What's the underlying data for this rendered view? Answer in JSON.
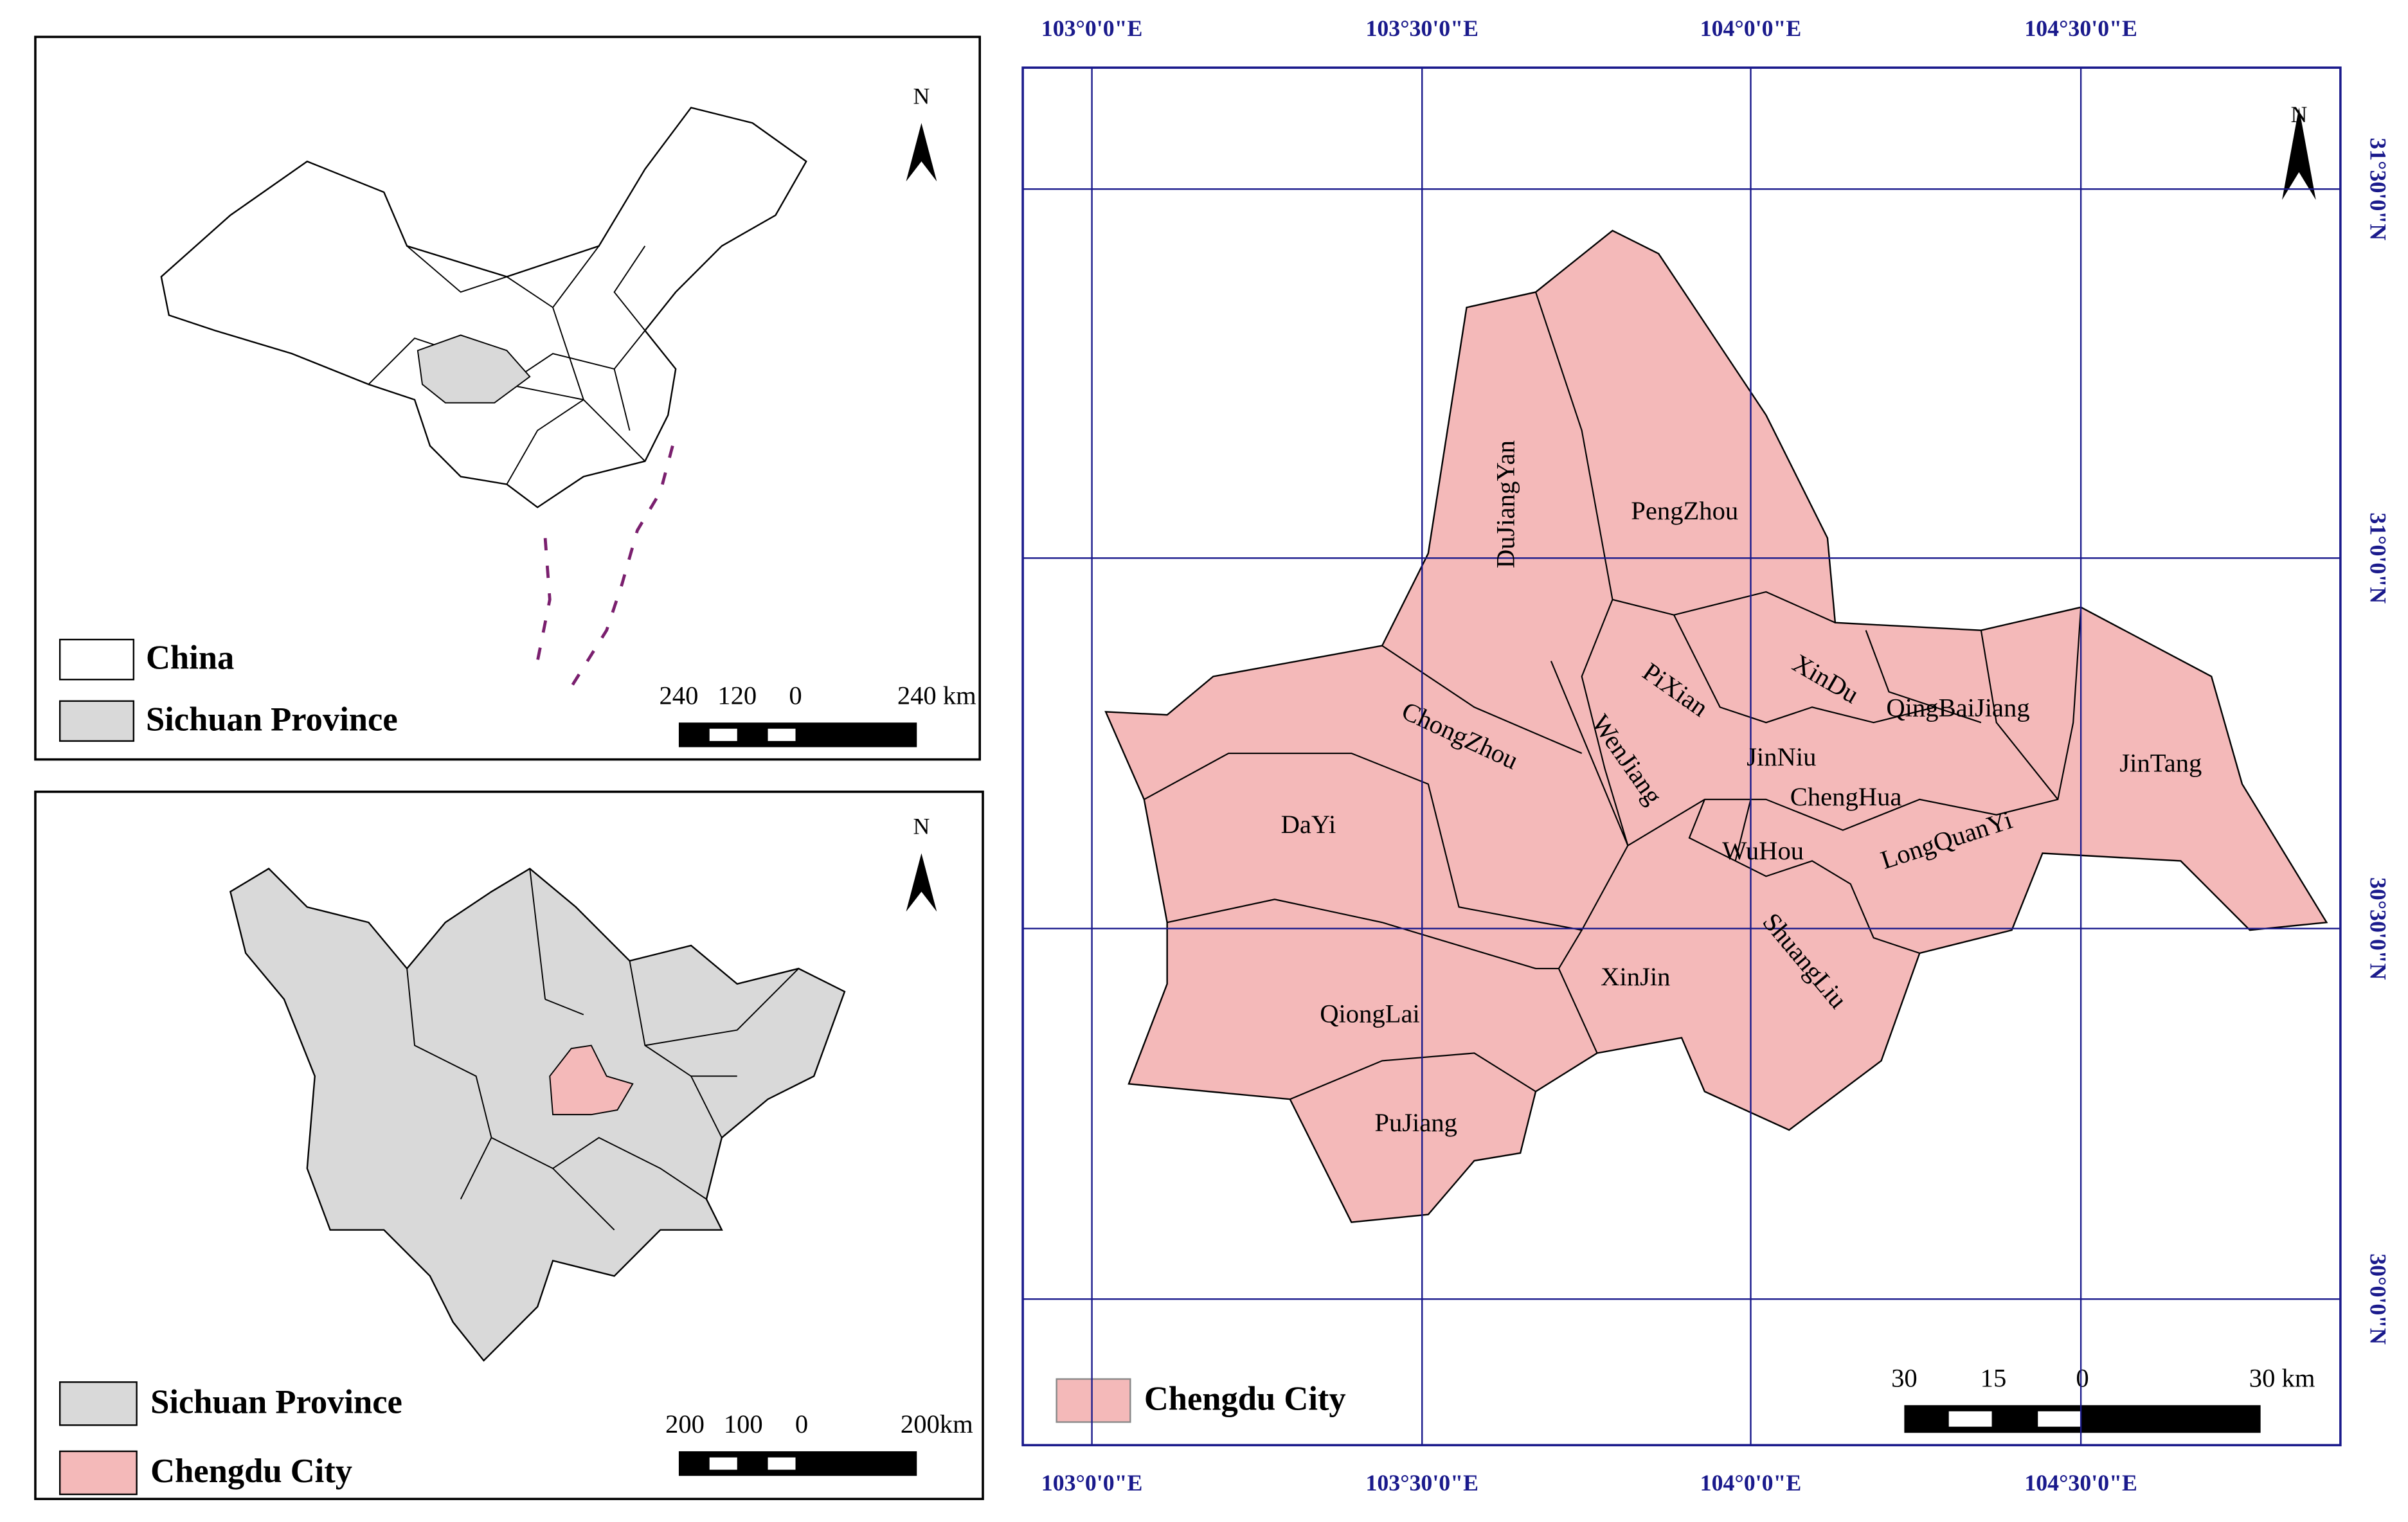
{
  "china_panel": {
    "north": "N",
    "legend": [
      {
        "label": "China"
      },
      {
        "label": "Sichuan Province"
      }
    ],
    "scale_labels": [
      "240",
      "120",
      "0",
      "240 km"
    ]
  },
  "sichuan_panel": {
    "north": "N",
    "legend": [
      {
        "label": "Sichuan Province"
      },
      {
        "label": "Chengdu City"
      }
    ],
    "scale_labels": [
      "200",
      "100",
      "0",
      "200km"
    ]
  },
  "chengdu_panel": {
    "north": "N",
    "longitude_labels": [
      "103°0'0\"E",
      "103°30'0\"E",
      "104°0'0\"E",
      "104°30'0\"E"
    ],
    "latitude_labels": [
      "31°30'0\"N",
      "31°0'0\"N",
      "30°30'0\"N",
      "30°0'0\"N"
    ],
    "districts": [
      "DuJiangYan",
      "PengZhou",
      "PiXian",
      "XinDu",
      "QingBaiJiang",
      "ChongZhou",
      "WenJiang",
      "JinNiu",
      "ChengHua",
      "JinTang",
      "DaYi",
      "WuHou",
      "LongQuanYi",
      "ShuangLiu",
      "XinJin",
      "QiongLai",
      "PuJiang"
    ],
    "legend": [
      {
        "label": "Chengdu City"
      }
    ],
    "scale_labels": [
      "30",
      "15",
      "0",
      "30 km"
    ]
  }
}
